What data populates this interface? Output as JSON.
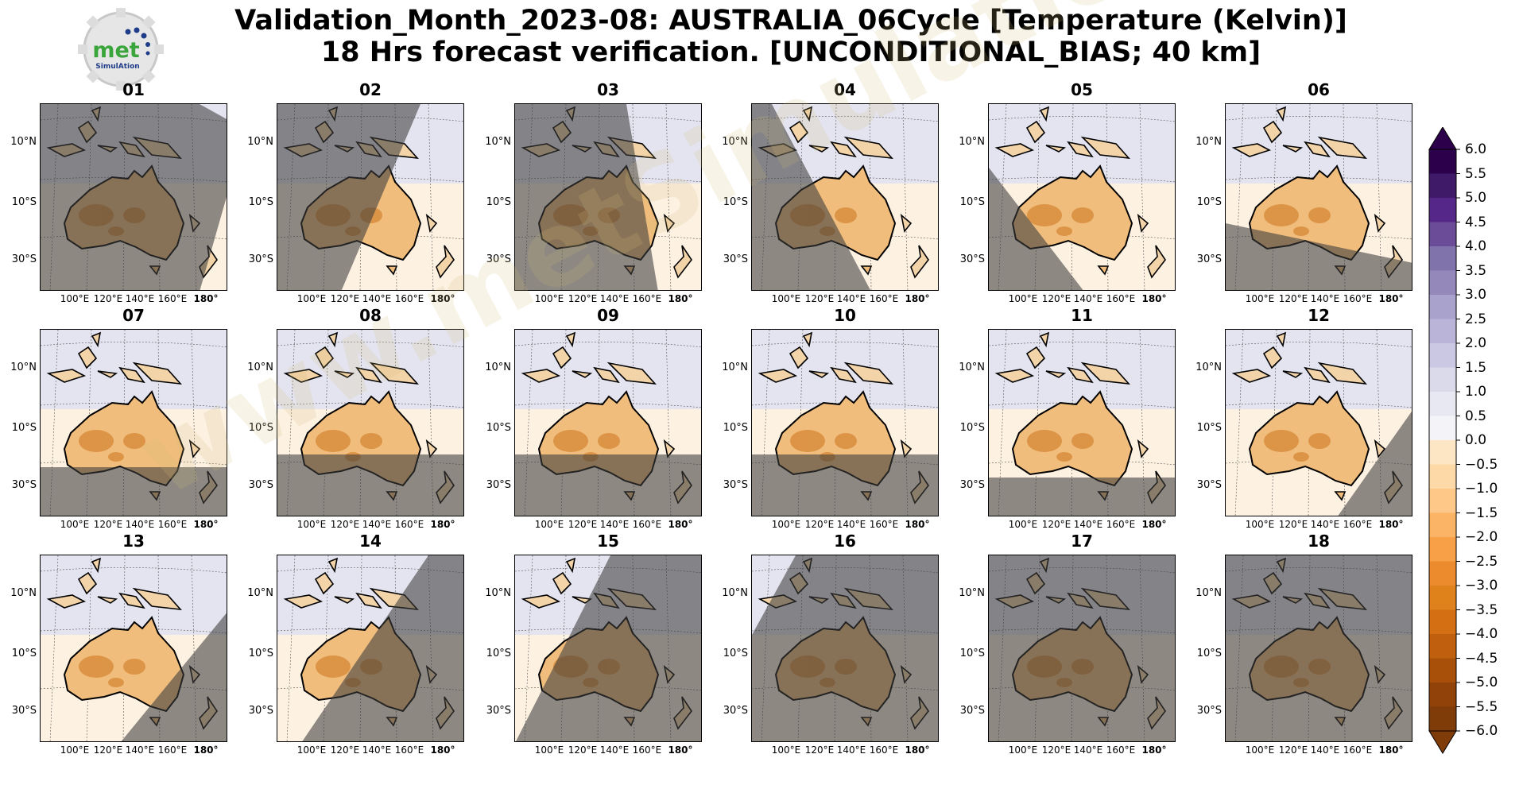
{
  "logo": {
    "text": "met",
    "subtext": "SimulAtion"
  },
  "title": {
    "line1": "Validation_Month_2023-08: AUSTRALIA_06Cycle [Temperature (Kelvin)]",
    "line2": "18 Hrs forecast verification. [UNCONDITIONAL_BIAS; 40 km]"
  },
  "watermark": "www.metSimulation.com",
  "colors": {
    "land": "#f0bd7c",
    "land_dark": "#d88a3a",
    "ocean_north": "#e4e4f0",
    "ocean_south": "#fdf1e2",
    "night_shade": "#3c3c3c"
  },
  "chart_data": {
    "type": "heatmap",
    "title": "Validation_Month_2023-08: AUSTRALIA_06Cycle [Temperature (Kelvin)] 18 Hrs forecast verification. [UNCONDITIONAL_BIAS; 40 km]",
    "panels": [
      {
        "label": "01",
        "shade": "mostly night; daylight strip at far east"
      },
      {
        "label": "02",
        "shade": "night west of ~150°E, diagonal terminator"
      },
      {
        "label": "03",
        "shade": "night west of ~140°E, diagonal terminator"
      },
      {
        "label": "04",
        "shade": "night over western half, diagonal terminator"
      },
      {
        "label": "05",
        "shade": "night over south-west triangle"
      },
      {
        "label": "06",
        "shade": "night over southern band"
      },
      {
        "label": "07",
        "shade": "night south of ~32°S"
      },
      {
        "label": "08",
        "shade": "night south of ~28°S"
      },
      {
        "label": "09",
        "shade": "night south of ~28°S"
      },
      {
        "label": "10",
        "shade": "night south of ~28°S"
      },
      {
        "label": "11",
        "shade": "night south of ~35°S"
      },
      {
        "label": "12",
        "shade": "night in south-east wedge"
      },
      {
        "label": "13",
        "shade": "night in eastern/south-east wedge"
      },
      {
        "label": "14",
        "shade": "night east of ~135°E, diagonal terminator"
      },
      {
        "label": "15",
        "shade": "night east of ~125°E, diagonal terminator"
      },
      {
        "label": "16",
        "shade": "mostly night; daylight strip at far west"
      },
      {
        "label": "17",
        "shade": "fully night"
      },
      {
        "label": "18",
        "shade": "fully night"
      }
    ],
    "lat_ticks": [
      "10°N",
      "10°S",
      "30°S"
    ],
    "lon_ticks": [
      "100°E",
      "120°E",
      "140°E",
      "160°E",
      "180°"
    ],
    "colorbar": {
      "extend": "both",
      "levels": [
        6.0,
        5.5,
        5.0,
        4.5,
        4.0,
        3.5,
        3.0,
        2.5,
        2.0,
        1.5,
        1.0,
        0.5,
        0.0,
        -0.5,
        -1.0,
        -1.5,
        -2.0,
        -2.5,
        -3.0,
        -3.5,
        -4.0,
        -4.5,
        -5.0,
        -5.5,
        -6.0
      ],
      "tick_labels": [
        "6.0",
        "5.5",
        "5.0",
        "4.5",
        "4.0",
        "3.5",
        "3.0",
        "2.5",
        "2.0",
        "1.5",
        "1.0",
        "0.5",
        "0.0",
        "−0.5",
        "−1.0",
        "−1.5",
        "−2.0",
        "−2.5",
        "−3.0",
        "−3.5",
        "−4.0",
        "−4.5",
        "−5.0",
        "−5.5",
        "−6.0"
      ],
      "colors": [
        "#2d004b",
        "#3f1a68",
        "#542788",
        "#6a4c98",
        "#8073ac",
        "#9488bb",
        "#a9a2cc",
        "#bab4d9",
        "#cbc8e4",
        "#dadaeb",
        "#e8e8f2",
        "#f4f4f8",
        "#fdf3e4",
        "#fde6c4",
        "#fdd9a8",
        "#fdc888",
        "#fbb366",
        "#f8a048",
        "#ec8a2e",
        "#e0821c",
        "#d46f14",
        "#c0600e",
        "#a8500a",
        "#904208",
        "#7f3b08"
      ]
    }
  }
}
